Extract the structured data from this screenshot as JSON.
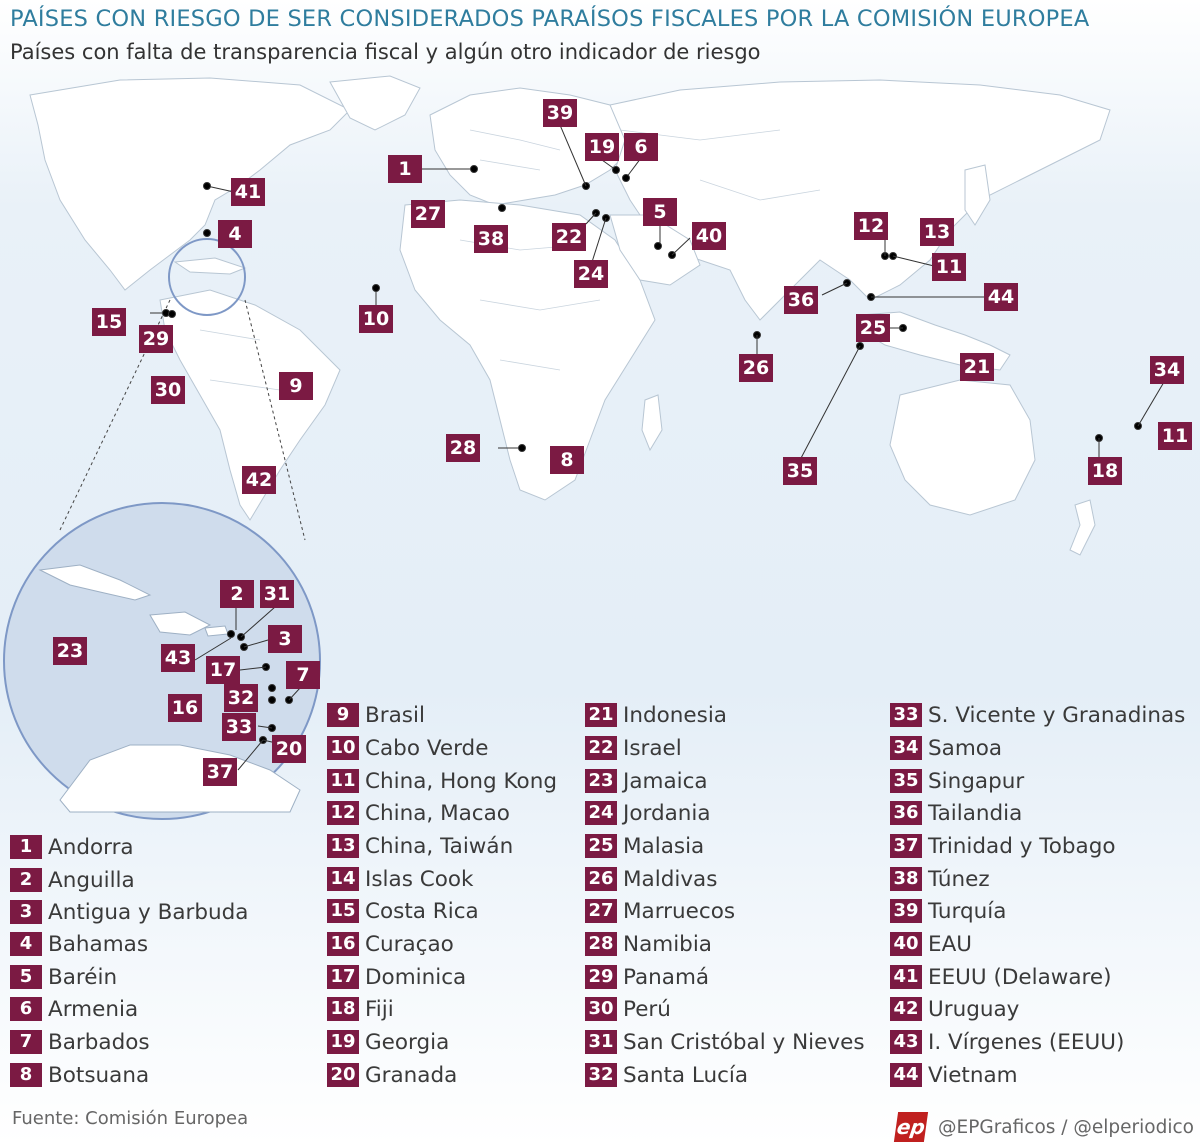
{
  "header": {
    "title": "PAÍSES CON RIESGO DE SER CONSIDERADOS PARAÍSOS FISCALES POR LA COMISIÓN EUROPEA",
    "subtitle": "Países con falta de transparencia fiscal y algún otro indicador de riesgo"
  },
  "colors": {
    "badge": "#7b1a43",
    "title": "#2f7d9e",
    "ocean": "#e4eef7",
    "land": "#ffffff",
    "inset": "#cfdcec"
  },
  "map_labels": [
    "1",
    "4",
    "5",
    "6",
    "8",
    "9",
    "10",
    "11",
    "11",
    "12",
    "13",
    "15",
    "18",
    "19",
    "21",
    "22",
    "24",
    "25",
    "26",
    "27",
    "28",
    "29",
    "30",
    "34",
    "35",
    "36",
    "38",
    "39",
    "40",
    "41",
    "42",
    "44"
  ],
  "inset_labels": [
    "2",
    "31",
    "3",
    "43",
    "17",
    "7",
    "23",
    "16",
    "32",
    "33",
    "20",
    "37"
  ],
  "legend": [
    {
      "num": "1",
      "name": "Andorra"
    },
    {
      "num": "2",
      "name": "Anguilla"
    },
    {
      "num": "3",
      "name": "Antigua y Barbuda"
    },
    {
      "num": "4",
      "name": "Bahamas"
    },
    {
      "num": "5",
      "name": "Baréin"
    },
    {
      "num": "6",
      "name": "Armenia"
    },
    {
      "num": "7",
      "name": "Barbados"
    },
    {
      "num": "8",
      "name": "Botsuana"
    },
    {
      "num": "9",
      "name": "Brasil"
    },
    {
      "num": "10",
      "name": "Cabo Verde"
    },
    {
      "num": "11",
      "name": "China, Hong Kong"
    },
    {
      "num": "12",
      "name": "China, Macao"
    },
    {
      "num": "13",
      "name": "China, Taiwán"
    },
    {
      "num": "14",
      "name": "Islas Cook"
    },
    {
      "num": "15",
      "name": "Costa Rica"
    },
    {
      "num": "16",
      "name": "Curaçao"
    },
    {
      "num": "17",
      "name": "Dominica"
    },
    {
      "num": "18",
      "name": "Fiji"
    },
    {
      "num": "19",
      "name": "Georgia"
    },
    {
      "num": "20",
      "name": "Granada"
    },
    {
      "num": "21",
      "name": "Indonesia"
    },
    {
      "num": "22",
      "name": "Israel"
    },
    {
      "num": "23",
      "name": "Jamaica"
    },
    {
      "num": "24",
      "name": "Jordania"
    },
    {
      "num": "25",
      "name": "Malasia"
    },
    {
      "num": "26",
      "name": "Maldivas"
    },
    {
      "num": "27",
      "name": "Marruecos"
    },
    {
      "num": "28",
      "name": "Namibia"
    },
    {
      "num": "29",
      "name": "Panamá"
    },
    {
      "num": "30",
      "name": "Perú"
    },
    {
      "num": "31",
      "name": "San Cristóbal y Nieves"
    },
    {
      "num": "32",
      "name": "Santa Lucía"
    },
    {
      "num": "33",
      "name": "S. Vicente y Granadinas"
    },
    {
      "num": "34",
      "name": "Samoa"
    },
    {
      "num": "35",
      "name": "Singapur"
    },
    {
      "num": "36",
      "name": "Tailandia"
    },
    {
      "num": "37",
      "name": "Trinidad y Tobago"
    },
    {
      "num": "38",
      "name": "Túnez"
    },
    {
      "num": "39",
      "name": "Turquía"
    },
    {
      "num": "40",
      "name": "EAU"
    },
    {
      "num": "41",
      "name": "EEUU (Delaware)"
    },
    {
      "num": "42",
      "name": "Uruguay"
    },
    {
      "num": "43",
      "name": "I. Vírgenes (EEUU)"
    },
    {
      "num": "44",
      "name": "Vietnam"
    }
  ],
  "footer": {
    "source": "Fuente: Comisión Europea",
    "logo": "ep",
    "credits": "@EPGraficos / @elperiodico"
  }
}
